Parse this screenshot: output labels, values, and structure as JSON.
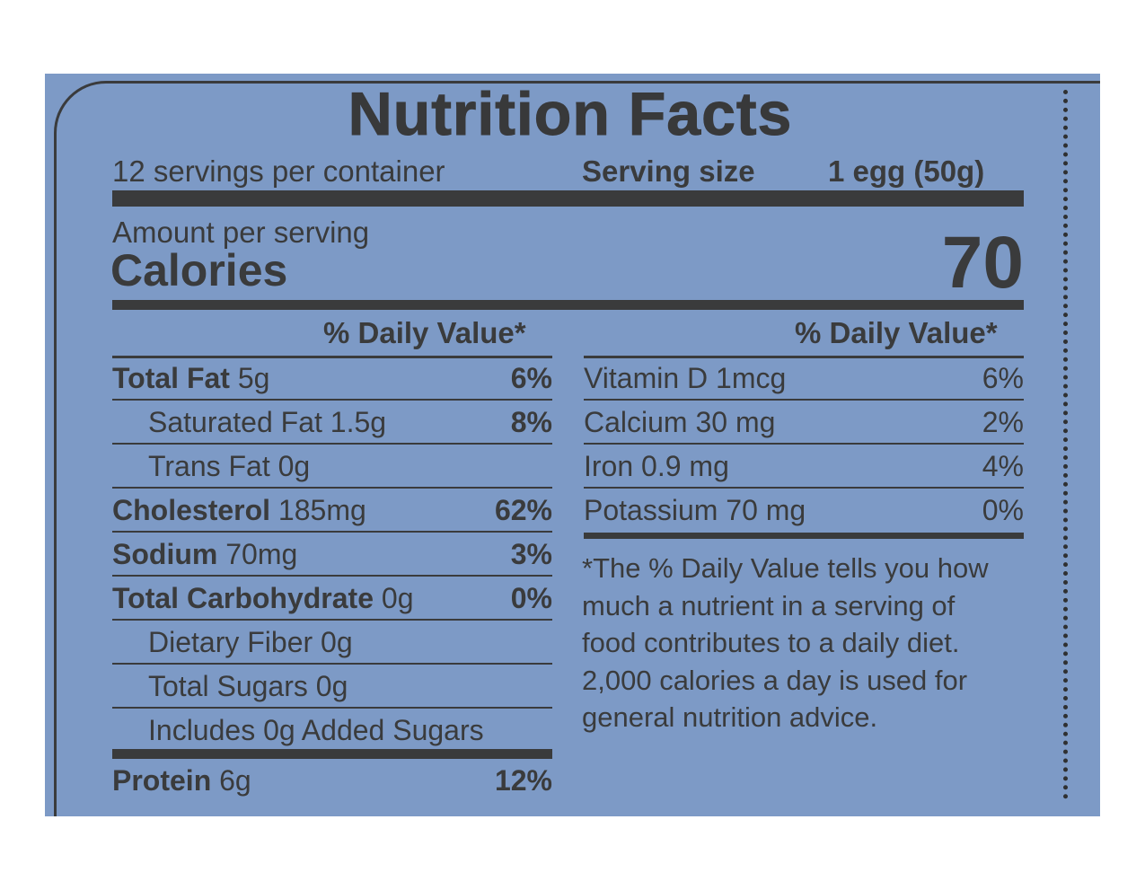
{
  "label": {
    "title": "Nutrition Facts",
    "servings_per_container": "12 servings per container",
    "serving_size_label": "Serving size",
    "serving_size_value": "1 egg (50g)",
    "amount_per_serving": "Amount per serving",
    "calories_label": "Calories",
    "calories_value": "70",
    "dv_header_left": "% Daily Value*",
    "dv_header_right": "% Daily Value*",
    "nutrients": [
      {
        "name": "Total Fat",
        "amount": "5g",
        "dv": "6%"
      },
      {
        "name": "Saturated Fat",
        "amount": "1.5g",
        "dv": "8%"
      },
      {
        "name": "Trans Fat",
        "amount": "0g",
        "dv": ""
      },
      {
        "name": "Cholesterol",
        "amount": "185mg",
        "dv": "62%"
      },
      {
        "name": "Sodium",
        "amount": "70mg",
        "dv": "3%"
      },
      {
        "name": "Total Carbohydrate",
        "amount": "0g",
        "dv": "0%"
      },
      {
        "name": "Dietary Fiber",
        "amount": "0g",
        "dv": ""
      },
      {
        "name": "Total Sugars",
        "amount": "0g",
        "dv": ""
      },
      {
        "name": "Includes 0g Added Sugars",
        "amount": "",
        "dv": ""
      },
      {
        "name": "Protein",
        "amount": "6g",
        "dv": "12%"
      }
    ],
    "vitamins": [
      {
        "name": "Vitamin D",
        "amount": "1mcg",
        "dv": "6%"
      },
      {
        "name": "Calcium",
        "amount": "30 mg",
        "dv": "2%"
      },
      {
        "name": "Iron",
        "amount": "0.9 mg",
        "dv": "4%"
      },
      {
        "name": "Potassium",
        "amount": "70 mg",
        "dv": "0%"
      }
    ],
    "footnote": "*The % Daily Value tells you how much a nutrient in a serving of food contributes to a daily diet. 2,000 calories a day is used for general nutrition advice.",
    "colors": {
      "panel": "#7d9ac6",
      "ink": "#3a3b3c"
    }
  }
}
